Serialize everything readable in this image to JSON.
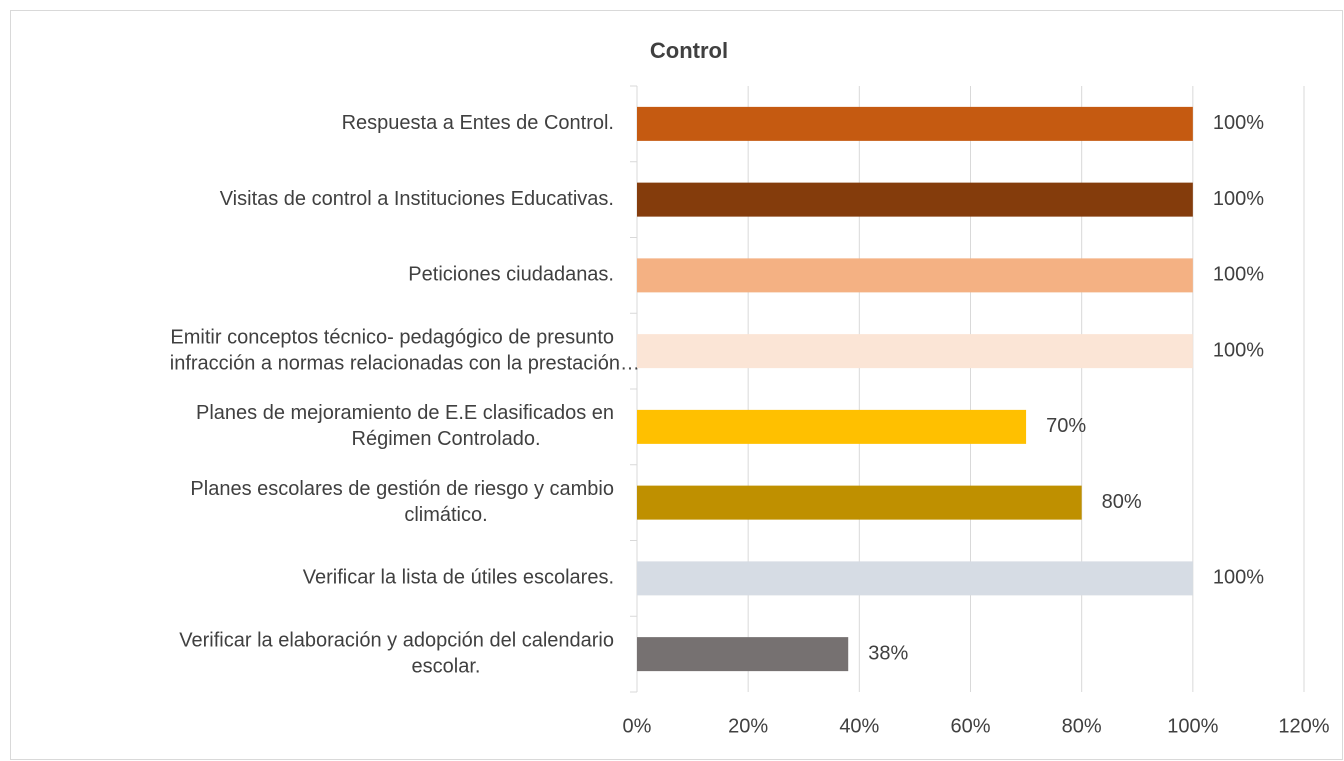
{
  "chart_data": {
    "type": "bar",
    "orientation": "horizontal",
    "title": "Control",
    "categories": [
      [
        "Respuesta a  Entes de Control."
      ],
      [
        "Visitas  de control a Instituciones Educativas."
      ],
      [
        "Peticiones ciudadanas."
      ],
      [
        "Emitir conceptos  técnico- pedagógico de presunto",
        "infracción a normas relacionadas con la prestación…"
      ],
      [
        "Planes de mejoramiento de  E.E clasificados en",
        "Régimen Controlado."
      ],
      [
        "Planes escolares de gestión de riesgo y cambio",
        "climático."
      ],
      [
        "Verificar la lista de útiles escolares."
      ],
      [
        "Verificar la elaboración y adopción del calendario",
        "escolar."
      ]
    ],
    "values": [
      100,
      100,
      100,
      100,
      70,
      80,
      100,
      38
    ],
    "value_labels": [
      "100%",
      "100%",
      "100%",
      "100%",
      "70%",
      "80%",
      "100%",
      "38%"
    ],
    "colors": [
      "#C55A11",
      "#843C0C",
      "#F4B183",
      "#FBE5D6",
      "#FFC000",
      "#BF9000",
      "#D6DCE4",
      "#767171"
    ],
    "xlim": [
      0,
      120
    ],
    "xticks": [
      {
        "value": 0,
        "label": "0%"
      },
      {
        "value": 20,
        "label": "20%"
      },
      {
        "value": 40,
        "label": "40%"
      },
      {
        "value": 60,
        "label": "60%"
      },
      {
        "value": 80,
        "label": "80%"
      },
      {
        "value": 100,
        "label": "100%"
      },
      {
        "value": 120,
        "label": "120%"
      }
    ],
    "grid": true
  }
}
